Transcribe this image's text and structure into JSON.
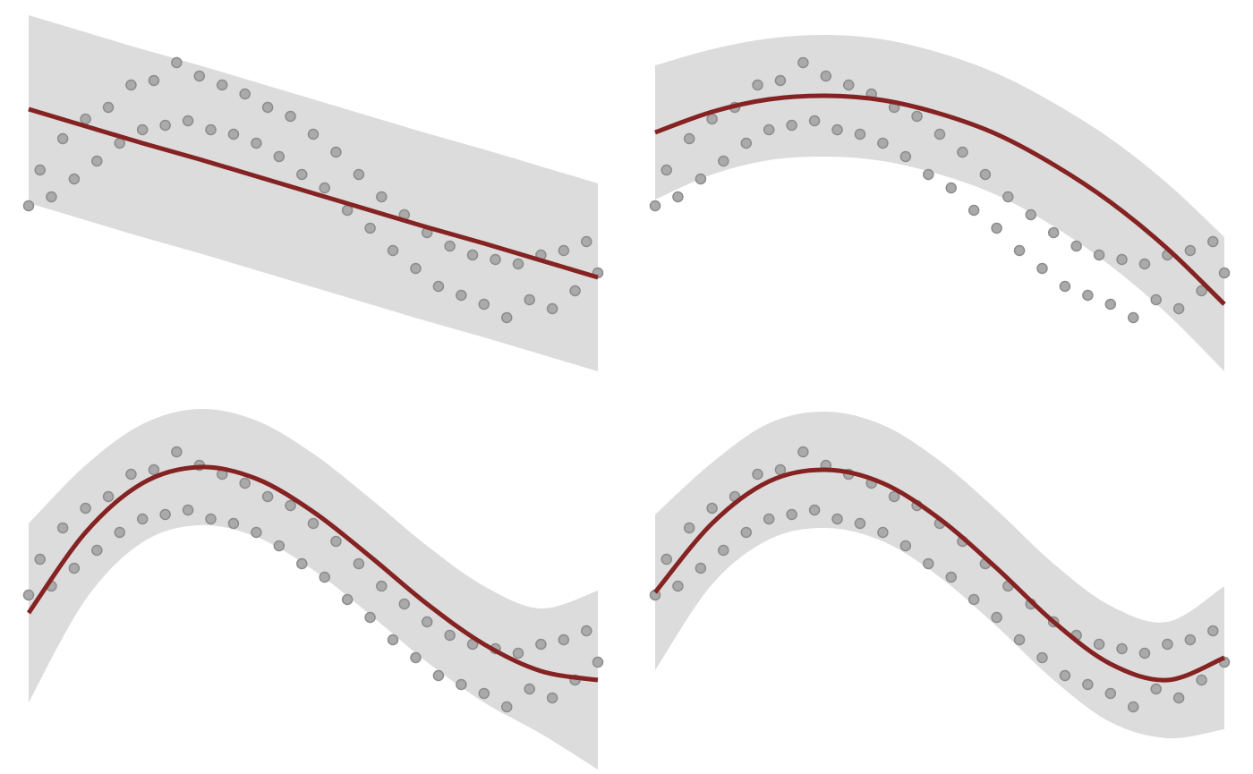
{
  "chart_data": [
    {
      "type": "scatter",
      "xlim": [
        0,
        10
      ],
      "ylim": [
        -2,
        2
      ],
      "point_color": "#aaaaaa",
      "point_edge": "#8c8c8c",
      "x": [
        0,
        0.2,
        0.4,
        0.6,
        0.8,
        1,
        1.2,
        1.4,
        1.6,
        1.8,
        2,
        2.2,
        2.4,
        2.6,
        2.8,
        3,
        3.2,
        3.4,
        3.6,
        3.8,
        4,
        4.2,
        4.4,
        4.6,
        4.8,
        5,
        5.2,
        5.4,
        5.6,
        5.8,
        6,
        6.2,
        6.4,
        6.6,
        6.8,
        7,
        7.2,
        7.4,
        7.6,
        7.8,
        8,
        8.2,
        8.4,
        8.6,
        8.8,
        9,
        9.2,
        9.4,
        9.6,
        9.8,
        10
      ],
      "y": [
        -0.15,
        0.25,
        -0.05,
        0.6,
        0.15,
        0.82,
        0.35,
        0.95,
        0.55,
        1.2,
        0.7,
        1.25,
        0.75,
        1.45,
        0.8,
        1.3,
        0.7,
        1.2,
        0.65,
        1.1,
        0.55,
        0.95,
        0.4,
        0.85,
        0.2,
        0.65,
        0.05,
        0.45,
        -0.2,
        0.2,
        -0.4,
        -0.05,
        -0.65,
        -0.25,
        -0.85,
        -0.45,
        -1.05,
        -0.6,
        -1.15,
        -0.7,
        -1.25,
        -0.75,
        -1.4,
        -0.8,
        -1.2,
        -0.7,
        -1.3,
        -0.65,
        -1.1,
        -0.55,
        -0.9
      ],
      "fit": {
        "color": "#852222",
        "band_color": "#dcdcdc",
        "x": [
          0,
          1,
          2,
          3,
          4,
          5,
          6,
          7,
          8,
          9,
          10
        ],
        "y": [
          0.93,
          0.74,
          0.55,
          0.37,
          0.18,
          -0.01,
          -0.2,
          -0.39,
          -0.57,
          -0.76,
          -0.95
        ],
        "upper": [
          1.98,
          1.79,
          1.6,
          1.42,
          1.23,
          1.04,
          0.85,
          0.66,
          0.48,
          0.29,
          0.1
        ],
        "lower": [
          -0.12,
          -0.31,
          -0.5,
          -0.68,
          -0.87,
          -1.06,
          -1.25,
          -1.44,
          -1.62,
          -1.81,
          -2
        ]
      }
    },
    {
      "type": "scatter",
      "xlim": [
        0,
        10
      ],
      "ylim": [
        -2,
        2
      ],
      "point_color": "#aaaaaa",
      "point_edge": "#8c8c8c",
      "x": [
        0,
        0.2,
        0.4,
        0.6,
        0.8,
        1,
        1.2,
        1.4,
        1.6,
        1.8,
        2,
        2.2,
        2.4,
        2.6,
        2.8,
        3,
        3.2,
        3.4,
        3.6,
        3.8,
        4,
        4.2,
        4.4,
        4.6,
        4.8,
        5,
        5.2,
        5.4,
        5.6,
        5.8,
        6,
        6.2,
        6.4,
        6.6,
        6.8,
        7,
        7.2,
        7.4,
        7.6,
        7.8,
        8,
        8.2,
        8.4,
        8.6,
        8.8,
        9,
        9.2,
        9.4,
        9.6,
        9.8,
        10
      ],
      "y": [
        -0.15,
        0.25,
        -0.05,
        0.6,
        0.15,
        0.82,
        0.35,
        0.95,
        0.55,
        1.2,
        0.7,
        1.25,
        0.75,
        1.45,
        0.8,
        1.3,
        0.7,
        1.2,
        0.65,
        1.1,
        0.55,
        0.95,
        0.4,
        0.85,
        0.2,
        0.65,
        0.05,
        0.45,
        -0.2,
        0.2,
        -0.4,
        -0.05,
        -0.65,
        -0.25,
        -0.85,
        -0.45,
        -1.05,
        -0.6,
        -1.15,
        -0.7,
        -1.25,
        -0.75,
        -1.4,
        -0.8,
        -1.2,
        -0.7,
        -1.3,
        -0.65,
        -1.1,
        -0.55,
        -0.9
      ],
      "fit": {
        "color": "#852222",
        "band_color": "#dcdcdc",
        "x": [
          0,
          1,
          2,
          3,
          4,
          5,
          6,
          7,
          8,
          9,
          10
        ],
        "y": [
          0.67,
          0.9,
          1.04,
          1.08,
          1.03,
          0.88,
          0.65,
          0.31,
          -0.11,
          -0.63,
          -1.25
        ],
        "upper": [
          1.42,
          1.6,
          1.72,
          1.76,
          1.71,
          1.56,
          1.33,
          1.0,
          0.6,
          0.1,
          -0.5
        ],
        "lower": [
          -0.08,
          0.2,
          0.36,
          0.4,
          0.35,
          0.2,
          -0.03,
          -0.38,
          -0.82,
          -1.36,
          -2
        ]
      }
    },
    {
      "type": "scatter",
      "xlim": [
        0,
        10
      ],
      "ylim": [
        -2,
        2
      ],
      "point_color": "#aaaaaa",
      "point_edge": "#8c8c8c",
      "x": [
        0,
        0.2,
        0.4,
        0.6,
        0.8,
        1,
        1.2,
        1.4,
        1.6,
        1.8,
        2,
        2.2,
        2.4,
        2.6,
        2.8,
        3,
        3.2,
        3.4,
        3.6,
        3.8,
        4,
        4.2,
        4.4,
        4.6,
        4.8,
        5,
        5.2,
        5.4,
        5.6,
        5.8,
        6,
        6.2,
        6.4,
        6.6,
        6.8,
        7,
        7.2,
        7.4,
        7.6,
        7.8,
        8,
        8.2,
        8.4,
        8.6,
        8.8,
        9,
        9.2,
        9.4,
        9.6,
        9.8,
        10
      ],
      "y": [
        -0.15,
        0.25,
        -0.05,
        0.6,
        0.15,
        0.82,
        0.35,
        0.95,
        0.55,
        1.2,
        0.7,
        1.25,
        0.75,
        1.45,
        0.8,
        1.3,
        0.7,
        1.2,
        0.65,
        1.1,
        0.55,
        0.95,
        0.4,
        0.85,
        0.2,
        0.65,
        0.05,
        0.45,
        -0.2,
        0.2,
        -0.4,
        -0.05,
        -0.65,
        -0.25,
        -0.85,
        -0.45,
        -1.05,
        -0.6,
        -1.15,
        -0.7,
        -1.25,
        -0.75,
        -1.4,
        -0.8,
        -1.2,
        -0.7,
        -1.3,
        -0.65,
        -1.1,
        -0.55,
        -0.9
      ],
      "fit": {
        "color": "#852222",
        "band_color": "#dcdcdc",
        "x": [
          0,
          1,
          2,
          3,
          4,
          5,
          6,
          7,
          8,
          9,
          10
        ],
        "y": [
          -0.35,
          0.55,
          1.1,
          1.28,
          1.15,
          0.78,
          0.28,
          -0.25,
          -0.7,
          -1.0,
          -1.1
        ],
        "upper": [
          0.65,
          1.3,
          1.76,
          1.93,
          1.8,
          1.43,
          0.93,
          0.4,
          -0.05,
          -0.3,
          -0.1
        ],
        "lower": [
          -1.35,
          -0.2,
          0.44,
          0.63,
          0.5,
          0.13,
          -0.37,
          -0.9,
          -1.35,
          -1.7,
          -2.1
        ]
      }
    },
    {
      "type": "scatter",
      "xlim": [
        0,
        10
      ],
      "ylim": [
        -2,
        2
      ],
      "point_color": "#aaaaaa",
      "point_edge": "#8c8c8c",
      "x": [
        0,
        0.2,
        0.4,
        0.6,
        0.8,
        1,
        1.2,
        1.4,
        1.6,
        1.8,
        2,
        2.2,
        2.4,
        2.6,
        2.8,
        3,
        3.2,
        3.4,
        3.6,
        3.8,
        4,
        4.2,
        4.4,
        4.6,
        4.8,
        5,
        5.2,
        5.4,
        5.6,
        5.8,
        6,
        6.2,
        6.4,
        6.6,
        6.8,
        7,
        7.2,
        7.4,
        7.6,
        7.8,
        8,
        8.2,
        8.4,
        8.6,
        8.8,
        9,
        9.2,
        9.4,
        9.6,
        9.8,
        10
      ],
      "y": [
        -0.15,
        0.25,
        -0.05,
        0.6,
        0.15,
        0.82,
        0.35,
        0.95,
        0.55,
        1.2,
        0.7,
        1.25,
        0.75,
        1.45,
        0.8,
        1.3,
        0.7,
        1.2,
        0.65,
        1.1,
        0.55,
        0.95,
        0.4,
        0.85,
        0.2,
        0.65,
        0.05,
        0.45,
        -0.2,
        0.2,
        -0.4,
        -0.05,
        -0.65,
        -0.25,
        -0.85,
        -0.45,
        -1.05,
        -0.6,
        -1.15,
        -0.7,
        -1.25,
        -0.75,
        -1.4,
        -0.8,
        -1.2,
        -0.7,
        -1.3,
        -0.65,
        -1.1,
        -0.55,
        -0.9
      ],
      "fit": {
        "color": "#852222",
        "band_color": "#dcdcdc",
        "x": [
          0,
          1,
          2,
          3,
          4,
          5,
          6,
          7,
          8,
          9,
          10
        ],
        "y": [
          -0.12,
          0.65,
          1.12,
          1.25,
          1.1,
          0.7,
          0.15,
          -0.45,
          -0.92,
          -1.1,
          -0.85
        ],
        "upper": [
          0.75,
          1.33,
          1.77,
          1.9,
          1.75,
          1.35,
          0.8,
          0.2,
          -0.27,
          -0.45,
          -0.05
        ],
        "lower": [
          -0.99,
          -0.03,
          0.47,
          0.6,
          0.45,
          0.05,
          -0.5,
          -1.1,
          -1.57,
          -1.75,
          -1.65
        ]
      }
    }
  ]
}
